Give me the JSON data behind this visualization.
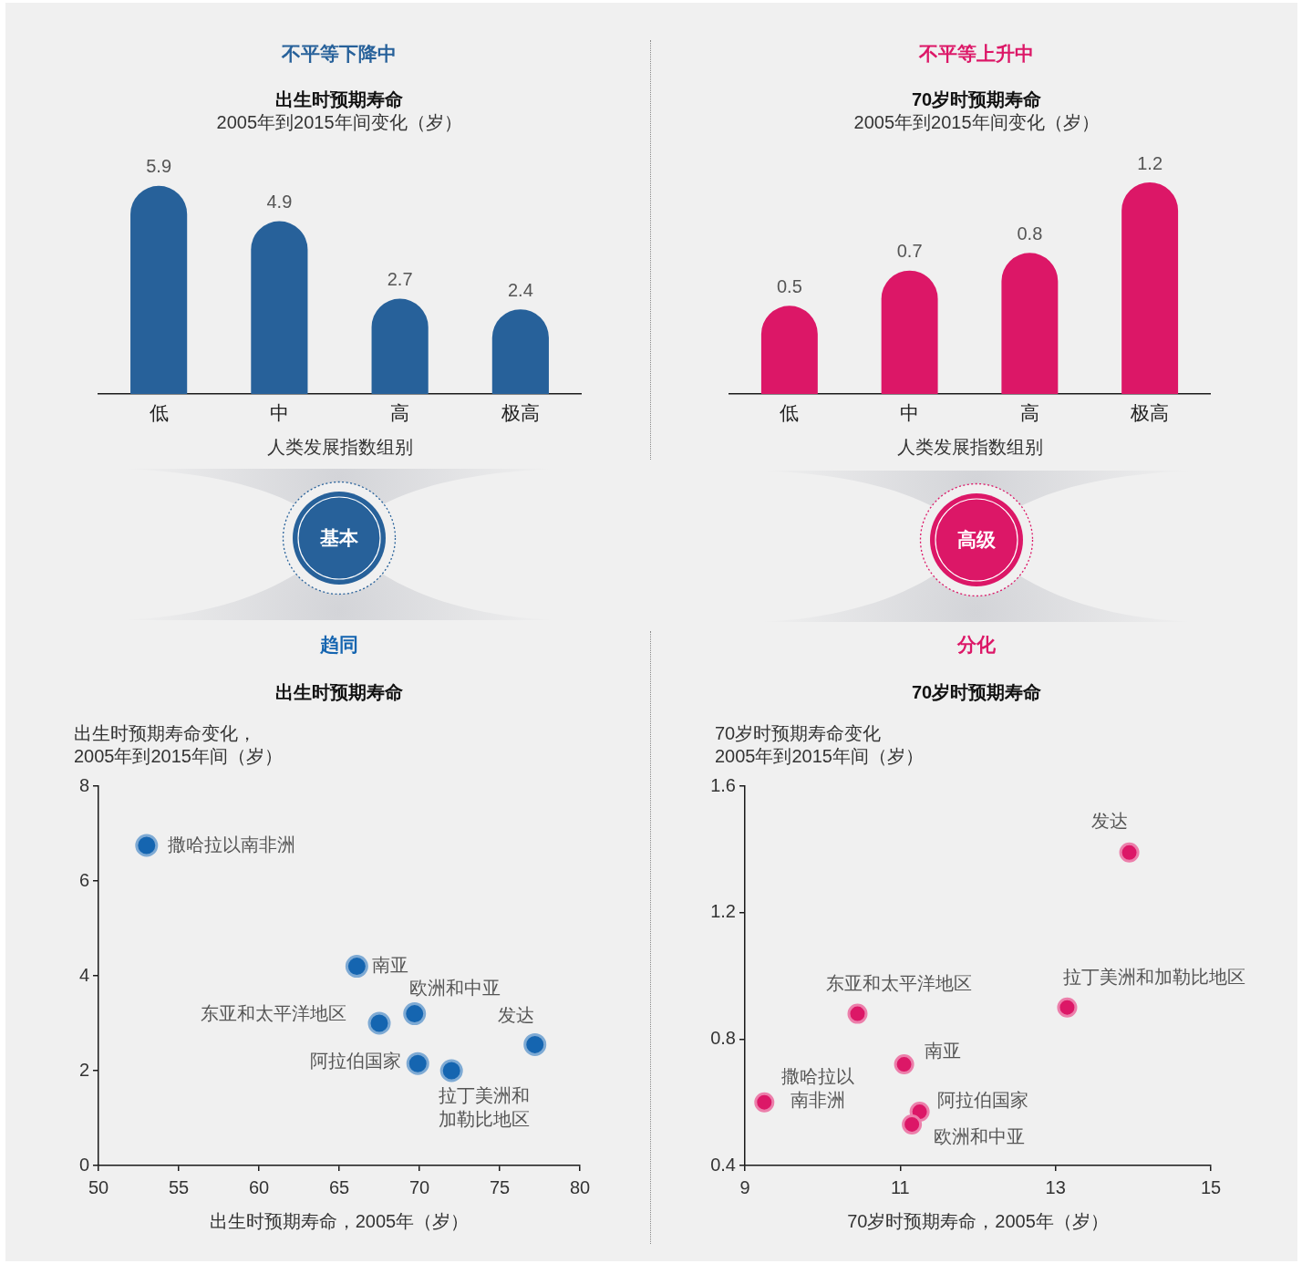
{
  "chart_data": [
    {
      "type": "bar",
      "title": "不平等下降中",
      "subtitle": "出生时预期寿命",
      "annotations": [
        "2005年到2015年间变化（岁）",
        "基本"
      ],
      "categories": [
        "低",
        "中",
        "高",
        "极高"
      ],
      "values": [
        5.9,
        4.9,
        2.7,
        2.4
      ],
      "color": "#27619a",
      "xlabel": "人类发展指数组别",
      "data_labels": true
    },
    {
      "type": "bar",
      "title": "不平等上升中",
      "subtitle": "70岁时预期寿命",
      "annotations": [
        "2005年到2015年间变化（岁）",
        "高级"
      ],
      "categories": [
        "低",
        "中",
        "高",
        "极高"
      ],
      "values": [
        0.5,
        0.7,
        0.8,
        1.2
      ],
      "color": "#dc1767",
      "xlabel": "人类发展指数组别",
      "data_labels": true
    },
    {
      "type": "scatter",
      "title": "趋同",
      "subtitle": "出生时预期寿命",
      "xlabel": "出生时预期寿命，2005年（岁）",
      "ylabel": "出生时预期寿命变化， 2005年到2015年间（岁）",
      "xlim": [
        50,
        80
      ],
      "xticks": [
        50,
        55,
        60,
        65,
        70,
        75,
        80
      ],
      "ylim": [
        0,
        8
      ],
      "yticks": [
        0,
        2,
        4,
        6,
        8
      ],
      "marker": "circle",
      "series": [
        {
          "name": "撒哈拉以南非洲",
          "color": "#1565b0",
          "x": [
            53.0
          ],
          "values": [
            6.75
          ]
        },
        {
          "name": "南亚",
          "color": "#1565b0",
          "x": [
            66.1
          ],
          "values": [
            4.2
          ]
        },
        {
          "name": "东亚和太平洋地区",
          "color": "#1565b0",
          "x": [
            67.5
          ],
          "values": [
            3.0
          ]
        },
        {
          "name": "欧洲和中亚",
          "color": "#1565b0",
          "x": [
            69.7
          ],
          "values": [
            3.2
          ]
        },
        {
          "name": "阿拉伯国家",
          "color": "#1565b0",
          "x": [
            69.9
          ],
          "values": [
            2.15
          ]
        },
        {
          "name": "拉丁美洲和加勒比地区",
          "color": "#1565b0",
          "x": [
            72.0
          ],
          "values": [
            2.0
          ]
        },
        {
          "name": "发达",
          "color": "#1565b0",
          "x": [
            77.2
          ],
          "values": [
            2.55
          ]
        }
      ]
    },
    {
      "type": "scatter",
      "title": "分化",
      "subtitle": "70岁时预期寿命",
      "xlabel": "70岁时预期寿命，2005年（岁）",
      "ylabel": "70岁时预期寿命变化 2005年到2015年间（岁）",
      "xlim": [
        9,
        15
      ],
      "xticks": [
        9,
        11,
        13,
        15
      ],
      "ylim": [
        0.4,
        1.6
      ],
      "yticks": [
        0.4,
        0.8,
        1.2,
        1.6
      ],
      "marker": "circle",
      "series": [
        {
          "name": "撒哈拉以南非洲",
          "color": "#dc1767",
          "x": [
            9.25
          ],
          "values": [
            0.6
          ]
        },
        {
          "name": "南亚",
          "color": "#dc1767",
          "x": [
            11.05
          ],
          "values": [
            0.72
          ]
        },
        {
          "name": "东亚和太平洋地区",
          "color": "#dc1767",
          "x": [
            10.45
          ],
          "values": [
            0.88
          ]
        },
        {
          "name": "欧洲和中亚",
          "color": "#dc1767",
          "x": [
            11.15
          ],
          "values": [
            0.53
          ]
        },
        {
          "name": "阿拉伯国家",
          "color": "#dc1767",
          "x": [
            11.25
          ],
          "values": [
            0.57
          ]
        },
        {
          "name": "拉丁美洲和加勒比地区",
          "color": "#dc1767",
          "x": [
            13.15
          ],
          "values": [
            0.9
          ]
        },
        {
          "name": "发达",
          "color": "#dc1767",
          "x": [
            13.95
          ],
          "values": [
            1.39
          ]
        }
      ]
    }
  ]
}
